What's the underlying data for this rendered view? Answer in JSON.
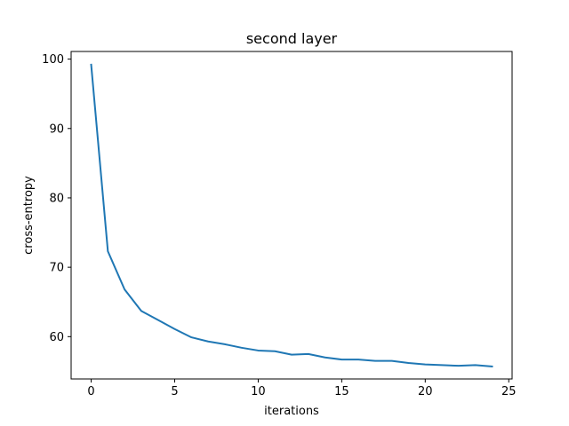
{
  "chart_data": {
    "type": "line",
    "title": "second layer",
    "xlabel": "iterations",
    "ylabel": "cross-entropy",
    "xlim": [
      -1.2,
      25.2
    ],
    "ylim": [
      53.9,
      101.1
    ],
    "xticks": [
      0,
      5,
      10,
      15,
      20,
      25
    ],
    "yticks": [
      60,
      70,
      80,
      90,
      100
    ],
    "grid": false,
    "series": [
      {
        "color": "#1f77b4",
        "x": [
          0,
          1,
          2,
          3,
          4,
          5,
          6,
          7,
          8,
          9,
          10,
          11,
          12,
          13,
          14,
          15,
          16,
          17,
          18,
          19,
          20,
          21,
          22,
          23,
          24
        ],
        "y": [
          99.2,
          72.3,
          66.8,
          63.7,
          62.4,
          61.1,
          59.9,
          59.3,
          58.9,
          58.4,
          58.0,
          57.9,
          57.4,
          57.5,
          57.0,
          56.7,
          56.7,
          56.5,
          56.5,
          56.2,
          56.0,
          55.9,
          55.8,
          55.9,
          55.7
        ]
      }
    ]
  }
}
